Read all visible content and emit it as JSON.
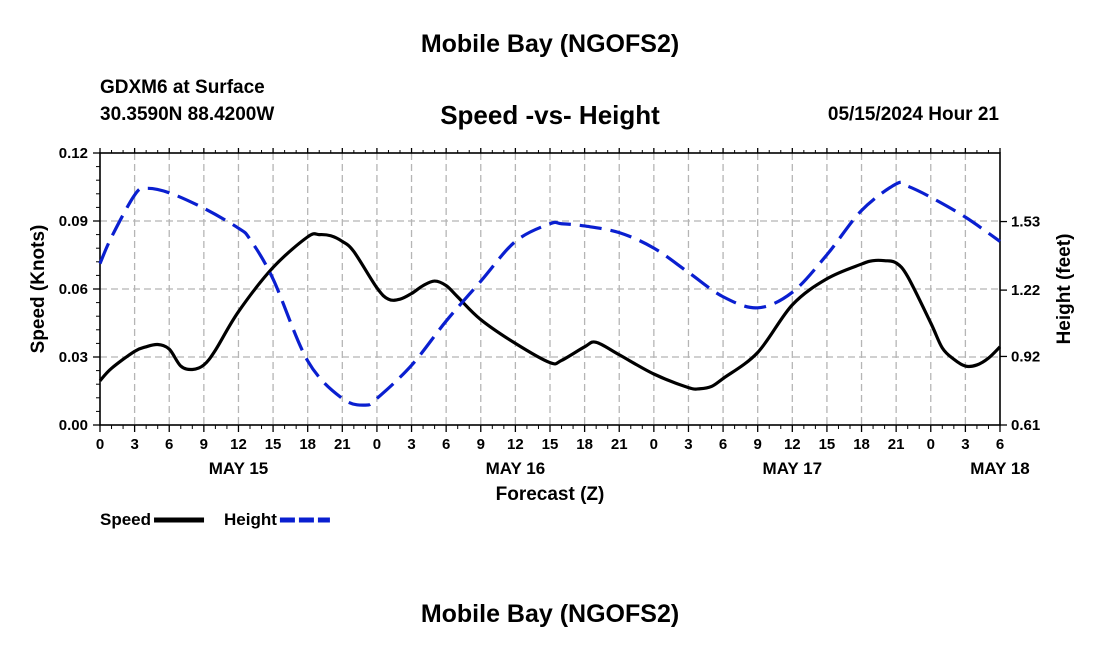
{
  "page": {
    "title": "Mobile Bay (NGOFS2)",
    "bottom_title": "Mobile Bay (NGOFS2)",
    "station_name": "GDXM6 at Surface",
    "station_coords": "30.3590N  88.4200W",
    "timestamp": "05/15/2024 Hour 21"
  },
  "chart_data": {
    "type": "line",
    "title": "Speed -vs- Height",
    "xlabel": "Forecast (Z)",
    "ylabel": "Speed (Knots)",
    "y2label": "Height (feet)",
    "x_start": "2024-05-15 00Z",
    "x_end": "2024-05-18 06Z",
    "x_tick_labels": [
      "0",
      "3",
      "6",
      "9",
      "12",
      "15",
      "18",
      "21",
      "0",
      "3",
      "6",
      "9",
      "12",
      "15",
      "18",
      "21",
      "0",
      "3",
      "6",
      "9",
      "12",
      "15",
      "18",
      "21",
      "0",
      "3",
      "6"
    ],
    "date_labels": [
      {
        "label": "MAY 15",
        "x": "2024-05-15 12Z"
      },
      {
        "label": "MAY 16",
        "x": "2024-05-16 12Z"
      },
      {
        "label": "MAY 17",
        "x": "2024-05-17 12Z"
      },
      {
        "label": "MAY 18",
        "x": "2024-05-18 06Z"
      }
    ],
    "ylim": [
      0,
      0.12
    ],
    "yticks": [
      "0.00",
      "0.03",
      "0.06",
      "0.09",
      "0.12"
    ],
    "y2lim": [
      0.61,
      1.84
    ],
    "y2ticks": [
      "0.61",
      "0.92",
      "1.22",
      "1.53"
    ],
    "grid": true,
    "legend_position": "bottom-left",
    "series": [
      {
        "name": "Speed",
        "axis": "left",
        "color": "#000000",
        "dash": "solid",
        "x": [
          "2024-05-15 00Z",
          "2024-05-15 01Z",
          "2024-05-15 03Z",
          "2024-05-15 04Z",
          "2024-05-15 05Z",
          "2024-05-15 06Z",
          "2024-05-15 07Z",
          "2024-05-15 08Z",
          "2024-05-15 09Z",
          "2024-05-15 10Z",
          "2024-05-15 12Z",
          "2024-05-15 15Z",
          "2024-05-15 18Z",
          "2024-05-15 19Z",
          "2024-05-15 20Z",
          "2024-05-15 21Z",
          "2024-05-15 22Z",
          "2024-05-16 00Z",
          "2024-05-16 01Z",
          "2024-05-16 02Z",
          "2024-05-16 03Z",
          "2024-05-16 04Z",
          "2024-05-16 05Z",
          "2024-05-16 06Z",
          "2024-05-16 07Z",
          "2024-05-16 09Z",
          "2024-05-16 12Z",
          "2024-05-16 15Z",
          "2024-05-16 16Z",
          "2024-05-16 18Z",
          "2024-05-16 19Z",
          "2024-05-16 21Z",
          "2024-05-17 00Z",
          "2024-05-17 03Z",
          "2024-05-17 04Z",
          "2024-05-17 05Z",
          "2024-05-17 06Z",
          "2024-05-17 09Z",
          "2024-05-17 12Z",
          "2024-05-17 15Z",
          "2024-05-17 18Z",
          "2024-05-17 19Z",
          "2024-05-17 20Z",
          "2024-05-17 21Z",
          "2024-05-17 22Z",
          "2024-05-18 00Z",
          "2024-05-18 01Z",
          "2024-05-18 02Z",
          "2024-05-18 03Z",
          "2024-05-18 04Z",
          "2024-05-18 05Z",
          "2024-05-18 06Z"
        ],
        "values": [
          0.0195,
          0.025,
          0.0325,
          0.0345,
          0.0355,
          0.0335,
          0.026,
          0.0245,
          0.0265,
          0.033,
          0.05,
          0.0695,
          0.083,
          0.084,
          0.0835,
          0.081,
          0.0765,
          0.0605,
          0.0555,
          0.0555,
          0.058,
          0.0615,
          0.0635,
          0.0615,
          0.0565,
          0.0465,
          0.036,
          0.0275,
          0.0285,
          0.0345,
          0.0365,
          0.031,
          0.0225,
          0.0165,
          0.016,
          0.017,
          0.0205,
          0.032,
          0.053,
          0.0645,
          0.071,
          0.0725,
          0.0725,
          0.0715,
          0.0655,
          0.045,
          0.034,
          0.029,
          0.026,
          0.0265,
          0.0295,
          0.0345
        ]
      },
      {
        "name": "Height",
        "axis": "right",
        "color": "#0a1fd0",
        "dash": "dashed",
        "x": [
          "2024-05-15 00Z",
          "2024-05-15 01Z",
          "2024-05-15 03Z",
          "2024-05-15 04Z",
          "2024-05-15 06Z",
          "2024-05-15 09Z",
          "2024-05-15 12Z",
          "2024-05-15 13Z",
          "2024-05-15 15Z",
          "2024-05-15 18Z",
          "2024-05-15 21Z",
          "2024-05-15 23Z",
          "2024-05-16 00Z",
          "2024-05-16 03Z",
          "2024-05-16 06Z",
          "2024-05-16 09Z",
          "2024-05-16 12Z",
          "2024-05-16 15Z",
          "2024-05-16 16Z",
          "2024-05-16 18Z",
          "2024-05-16 21Z",
          "2024-05-17 00Z",
          "2024-05-17 03Z",
          "2024-05-17 06Z",
          "2024-05-17 09Z",
          "2024-05-17 12Z",
          "2024-05-17 15Z",
          "2024-05-17 18Z",
          "2024-05-17 21Z",
          "2024-05-17 22Z",
          "2024-05-18 00Z",
          "2024-05-18 03Z",
          "2024-05-18 06Z"
        ],
        "values": [
          1.34,
          1.46,
          1.65,
          1.68,
          1.66,
          1.59,
          1.5,
          1.45,
          1.27,
          0.9,
          0.73,
          0.7,
          0.73,
          0.88,
          1.08,
          1.26,
          1.44,
          1.52,
          1.52,
          1.51,
          1.48,
          1.41,
          1.3,
          1.19,
          1.14,
          1.21,
          1.38,
          1.58,
          1.7,
          1.69,
          1.64,
          1.55,
          1.44
        ]
      }
    ]
  }
}
